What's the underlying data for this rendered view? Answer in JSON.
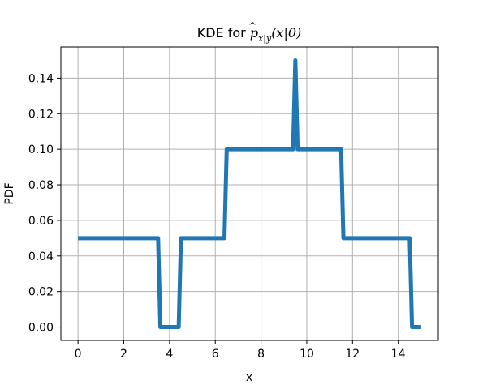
{
  "chart_data": {
    "type": "line",
    "title": {
      "prefix": "KDE for ",
      "p": "p",
      "hat": "^",
      "subscript": "x|y",
      "args": "(x|0)"
    },
    "xlabel": "x",
    "ylabel": "PDF",
    "xlim": [
      -0.75,
      15.75
    ],
    "ylim": [
      -0.0075,
      0.1575
    ],
    "xticks": [
      0,
      2,
      4,
      6,
      8,
      10,
      12,
      14
    ],
    "xtick_labels": [
      "0",
      "2",
      "4",
      "6",
      "8",
      "10",
      "12",
      "14"
    ],
    "yticks": [
      0.0,
      0.02,
      0.04,
      0.06,
      0.08,
      0.1,
      0.12,
      0.14
    ],
    "ytick_labels": [
      "0.00",
      "0.02",
      "0.04",
      "0.06",
      "0.08",
      "0.10",
      "0.12",
      "0.14"
    ],
    "grid": true,
    "series": [
      {
        "color": "#1f77b4",
        "x": [
          0,
          3.5,
          3.6,
          4.4,
          4.5,
          6.4,
          6.5,
          9.4,
          9.5,
          9.6,
          11.5,
          11.6,
          14.5,
          14.6,
          15.0
        ],
        "y": [
          0.05,
          0.05,
          0.0,
          0.0,
          0.05,
          0.05,
          0.1,
          0.1,
          0.15,
          0.1,
          0.1,
          0.05,
          0.05,
          0.0,
          0.0
        ]
      }
    ]
  }
}
